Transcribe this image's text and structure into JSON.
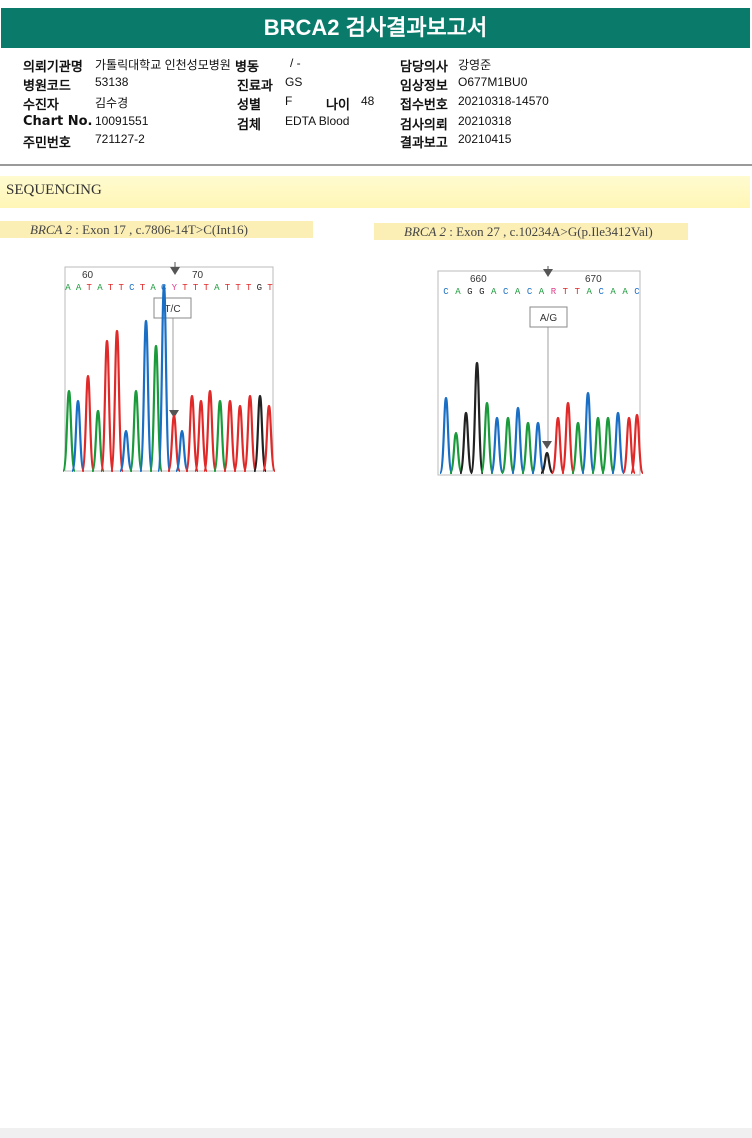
{
  "report": {
    "title": "BRCA2 검사결과보고서"
  },
  "patient_info": {
    "requesting_institution_label": "의뢰기관명",
    "requesting_institution": "가톨릭대학교 인천성모병원",
    "ward_label": "병동",
    "ward": "/ -",
    "attending_physician_label": "담당의사",
    "attending_physician": "강영준",
    "hospital_code_label": "병원코드",
    "hospital_code": "53138",
    "department_label": "진료과",
    "department": "GS",
    "clinical_info_label": "임상정보",
    "clinical_info": "O677M1BU0",
    "recipient_label": "수진자",
    "recipient": "김수경",
    "sex_label": "성별",
    "sex": "F",
    "age_label": "나이",
    "age": "48",
    "accession_label": "접수번호",
    "accession": "20210318-14570",
    "chart_label": "Chart No.",
    "chart_no": "10091551",
    "specimen_label": "검체",
    "specimen": "EDTA Blood",
    "test_request_label": "검사의뢰",
    "test_request": "20210318",
    "resident_label": "주민번호",
    "resident_no": "721127-2",
    "result_report_label": "결과보고",
    "result_report": "20210415"
  },
  "sequencing": {
    "section_title": "SEQUENCING",
    "variants": [
      {
        "gene": "BRCA 2",
        "detail": "Exon 17 , c.7806-14T>C(Int16)",
        "sequence": "AATATTCTACYTTTATTTGT",
        "positions": [
          "60",
          "70"
        ],
        "call": "T/C"
      },
      {
        "gene": "BRCA 2",
        "detail": "Exon 27 , c.10234A>G(p.Ile3412Val)",
        "sequence": "CAGGACACARTTACAAC",
        "positions": [
          "660",
          "670"
        ],
        "call": "A/G"
      }
    ]
  },
  "colors": {
    "header": "#0a7a6a",
    "A": "#1a9a3a",
    "C": "#1a6fc4",
    "G": "#222222",
    "T": "#e02a2a",
    "R": "#e0408a",
    "Y": "#e0408a"
  }
}
